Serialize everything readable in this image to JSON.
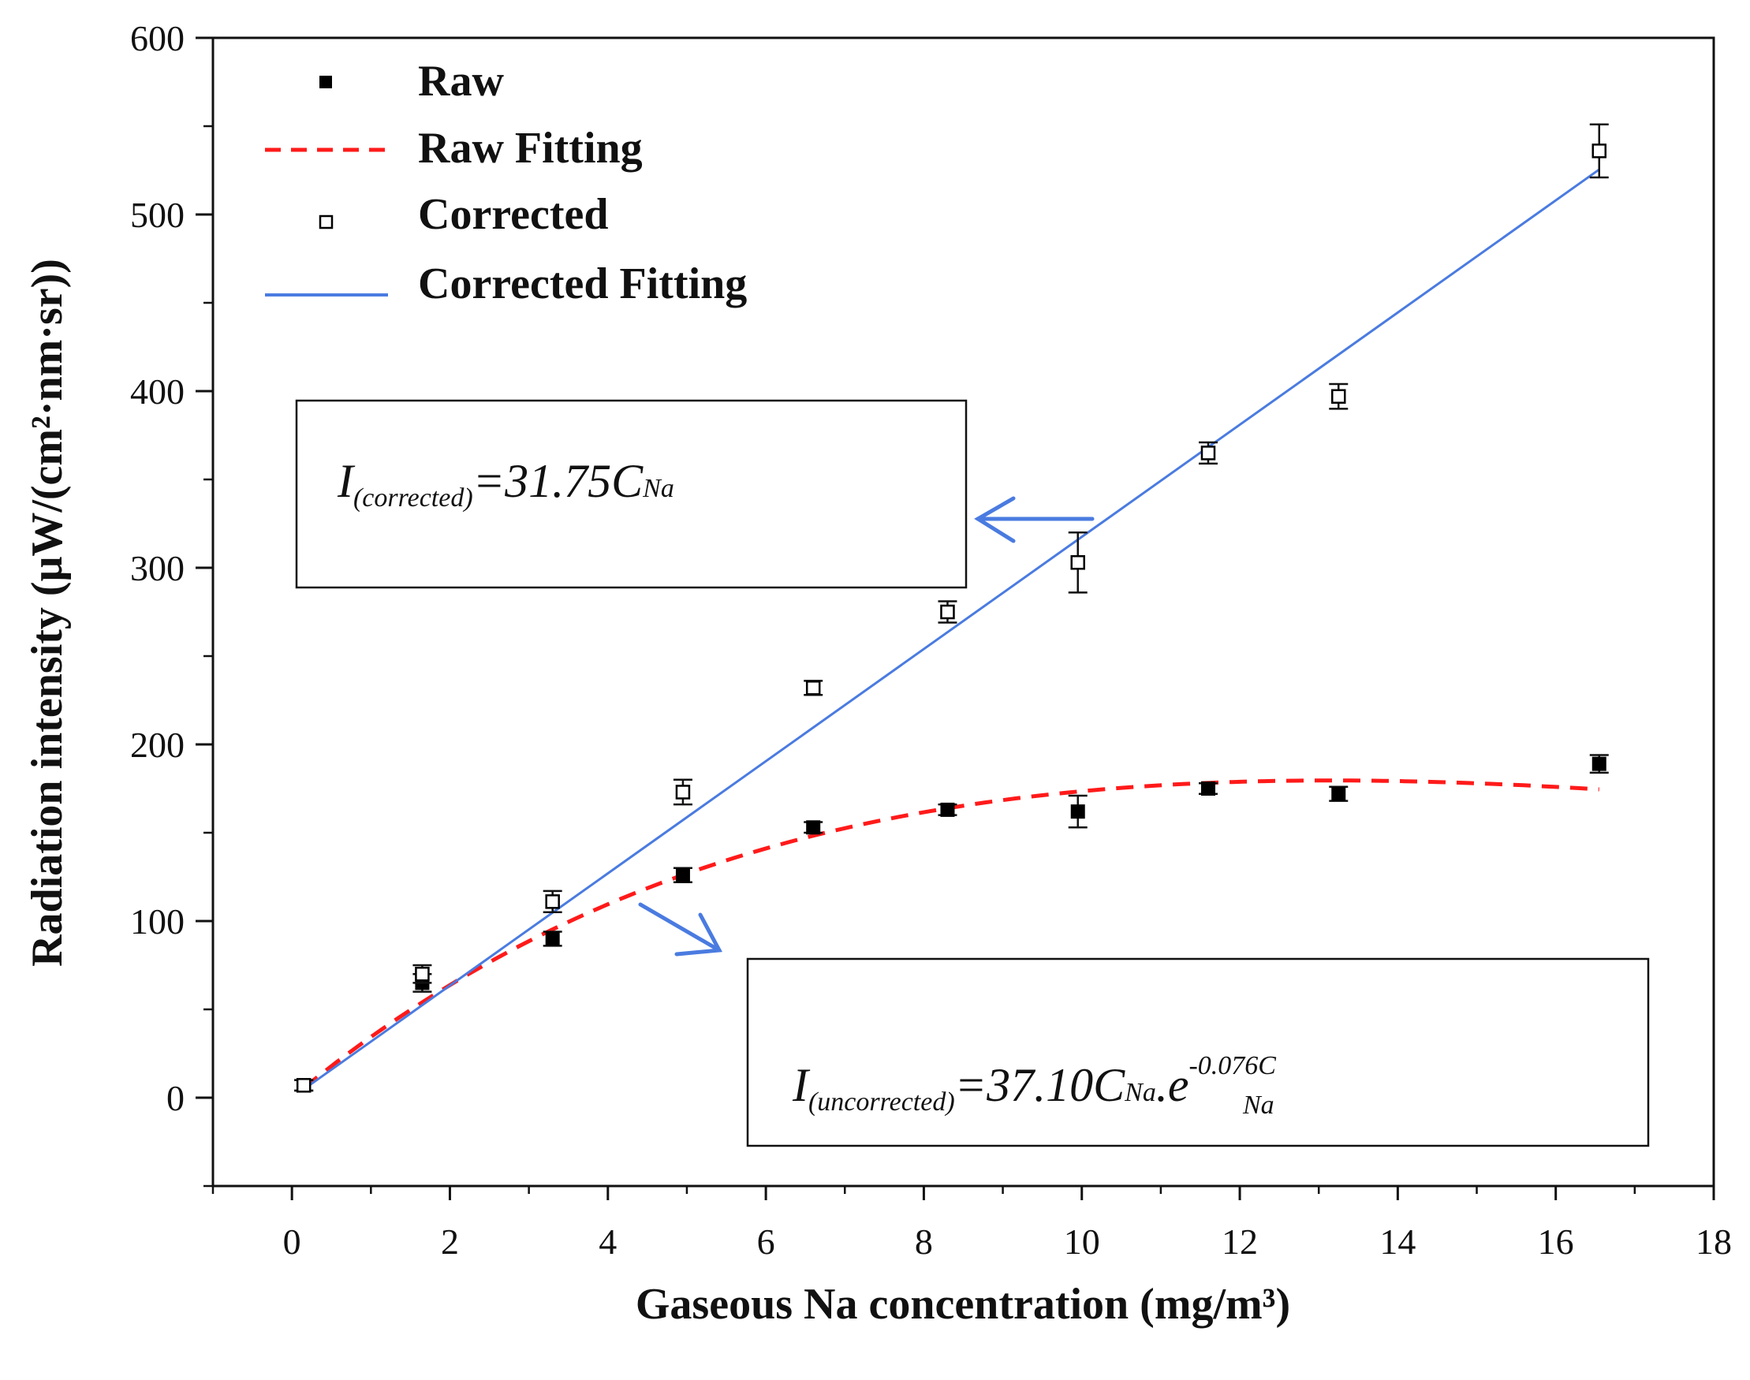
{
  "chart_data": {
    "type": "scatter",
    "title": "",
    "xlabel": "Gaseous Na concentration (mg/m³)",
    "ylabel": "Radiation intensity (μW/(cm²·nm·sr))",
    "xlim": [
      -1,
      18
    ],
    "ylim": [
      -50,
      600
    ],
    "xticks": [
      0,
      2,
      4,
      6,
      8,
      10,
      12,
      14,
      16,
      18
    ],
    "yticks": [
      0,
      100,
      200,
      300,
      400,
      500,
      600
    ],
    "x_tick_labels": [
      "0",
      "2",
      "4",
      "6",
      "8",
      "10",
      "12",
      "14",
      "16",
      "18"
    ],
    "y_tick_labels": [
      "0",
      "100",
      "200",
      "300",
      "400",
      "500",
      "600"
    ],
    "grid": false,
    "legend_position": "top-left",
    "series": [
      {
        "name": "Raw",
        "kind": "points",
        "marker": "filled-square",
        "color": "#000000",
        "points": [
          {
            "x": 0.15,
            "y": 7,
            "err": 3
          },
          {
            "x": 1.65,
            "y": 65,
            "err": 5
          },
          {
            "x": 3.3,
            "y": 90,
            "err": 4
          },
          {
            "x": 4.95,
            "y": 126,
            "err": 4
          },
          {
            "x": 6.6,
            "y": 153,
            "err": 3
          },
          {
            "x": 8.3,
            "y": 163,
            "err": 3
          },
          {
            "x": 9.95,
            "y": 162,
            "err": 9
          },
          {
            "x": 11.6,
            "y": 175,
            "err": 3
          },
          {
            "x": 13.25,
            "y": 172,
            "err": 4
          },
          {
            "x": 16.55,
            "y": 189,
            "err": 5
          }
        ]
      },
      {
        "name": "Raw Fitting",
        "kind": "curve",
        "style": "dashed",
        "color": "#ff1a1a",
        "equation": "37.10*x*exp(-0.076*x)",
        "x_range": [
          0.15,
          16.55
        ]
      },
      {
        "name": "Corrected",
        "kind": "points",
        "marker": "open-square",
        "color": "#000000",
        "points": [
          {
            "x": 0.15,
            "y": 7,
            "err": 3
          },
          {
            "x": 1.65,
            "y": 70,
            "err": 5
          },
          {
            "x": 3.3,
            "y": 111,
            "err": 6
          },
          {
            "x": 4.95,
            "y": 173,
            "err": 7
          },
          {
            "x": 6.6,
            "y": 232,
            "err": 4
          },
          {
            "x": 8.3,
            "y": 275,
            "err": 6
          },
          {
            "x": 9.95,
            "y": 303,
            "err": 17
          },
          {
            "x": 11.6,
            "y": 365,
            "err": 6
          },
          {
            "x": 13.25,
            "y": 397,
            "err": 7
          },
          {
            "x": 16.55,
            "y": 536,
            "err": 15
          }
        ]
      },
      {
        "name": "Corrected Fitting",
        "kind": "line",
        "style": "solid",
        "color": "#4a7be0",
        "equation": "31.75*x",
        "x_range": [
          0.15,
          16.55
        ]
      }
    ],
    "annotations": [
      {
        "id": "corrected-eq",
        "prefix": "I",
        "sub": "(corrected)",
        "mid": "=31.75C",
        "sub2": "Na",
        "arrow_color": "#4a7be0"
      },
      {
        "id": "uncorrected-eq",
        "prefix": "I",
        "sub": "(uncorrected)",
        "mid": "=37.10C",
        "sub2": "Na",
        "mid2": ".e",
        "sup": "-0.076C",
        "supsub": "Na",
        "arrow_color": "#4a7be0"
      }
    ]
  }
}
